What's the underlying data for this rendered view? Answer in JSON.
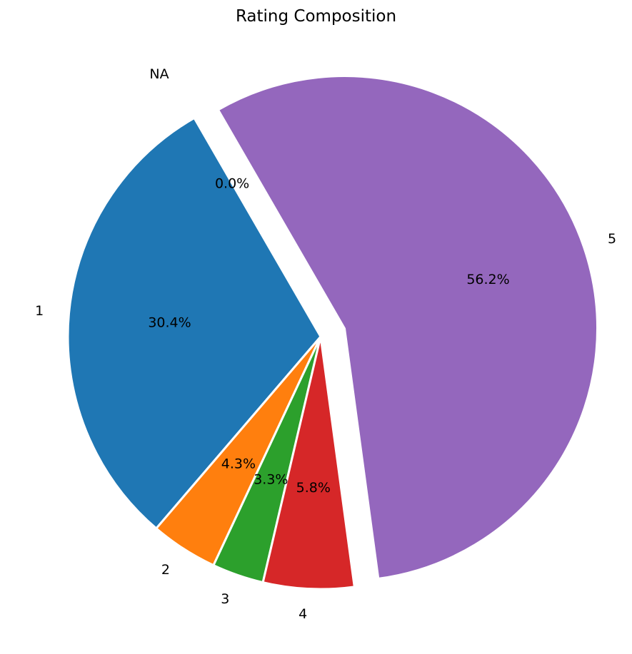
{
  "chart_data": {
    "type": "pie",
    "title": "Rating Composition",
    "slices": [
      {
        "label": "1",
        "value": 30.4,
        "pct_label": "30.4%",
        "color": "#1f77b4",
        "exploded": false
      },
      {
        "label": "2",
        "value": 4.3,
        "pct_label": "4.3%",
        "color": "#ff7f0e",
        "exploded": false
      },
      {
        "label": "3",
        "value": 3.3,
        "pct_label": "3.3%",
        "color": "#2ca02c",
        "exploded": false
      },
      {
        "label": "4",
        "value": 5.8,
        "pct_label": "5.8%",
        "color": "#d62728",
        "exploded": false
      },
      {
        "label": "5",
        "value": 56.2,
        "pct_label": "56.2%",
        "color": "#9467bd",
        "exploded": true
      },
      {
        "label": "NA",
        "value": 0.0,
        "pct_label": "0.0%",
        "color": "#8c564b",
        "exploded": true
      }
    ],
    "start_angle_deg": 120,
    "direction": "counterclockwise",
    "legend": "none"
  }
}
